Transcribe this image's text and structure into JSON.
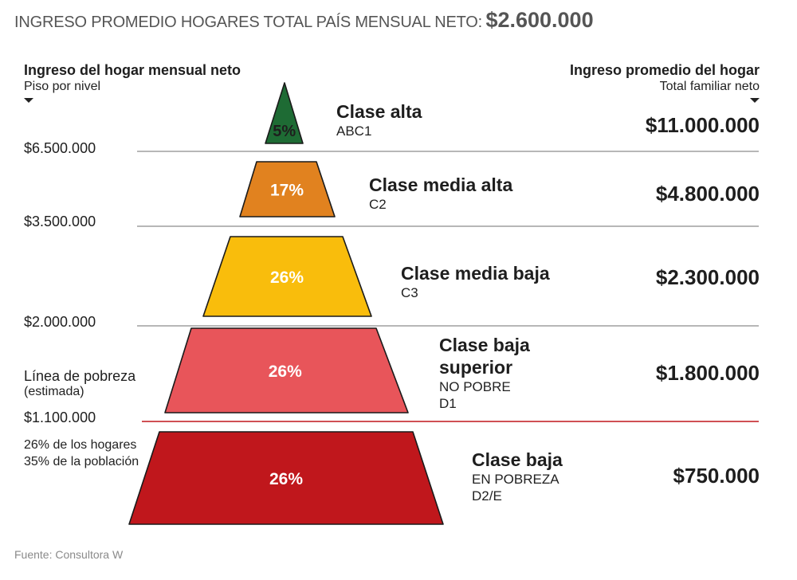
{
  "header": {
    "label": "INGRESO PROMEDIO HOGARES TOTAL PAÍS MENSUAL NETO:",
    "value": "$2.600.000"
  },
  "left_column": {
    "title": "Ingreso del hogar mensual neto",
    "subtitle": "Piso por nivel"
  },
  "right_column": {
    "title": "Ingreso promedio del hogar",
    "subtitle": "Total familiar neto"
  },
  "thresholds": [
    "$6.500.000",
    "$3.500.000",
    "$2.000.000",
    "$1.100.000"
  ],
  "poverty": {
    "title": "Línea de pobreza",
    "subtitle": "(estimada)",
    "note_households": "26% de los hogares",
    "note_population": "35% de la población"
  },
  "source": "Fuente: Consultora W",
  "colors": {
    "alta": "#1e6b34",
    "media_alta": "#e1821f",
    "media_baja": "#f9bd0c",
    "baja_superior": "#e8555a",
    "baja_pobreza": "#c0171c",
    "poverty_line": "#c0171c",
    "separator": "#8c8c8c"
  },
  "chart_data": {
    "type": "table",
    "title": "INGRESO PROMEDIO HOGARES TOTAL PAÍS MENSUAL NETO: $2.600.000",
    "levels": [
      {
        "name": "Clase alta",
        "name_lines": [
          "Clase alta"
        ],
        "code_lines": [
          "ABC1"
        ],
        "percent": 5,
        "percent_label": "5%",
        "floor": "$6.500.000",
        "avg_income": "$11.000.000"
      },
      {
        "name": "Clase media alta",
        "name_lines": [
          "Clase media alta"
        ],
        "code_lines": [
          "C2"
        ],
        "percent": 17,
        "percent_label": "17%",
        "floor": "$3.500.000",
        "avg_income": "$4.800.000"
      },
      {
        "name": "Clase media baja",
        "name_lines": [
          "Clase media baja"
        ],
        "code_lines": [
          "C3"
        ],
        "percent": 26,
        "percent_label": "26%",
        "floor": "$2.000.000",
        "avg_income": "$2.300.000"
      },
      {
        "name": "Clase baja superior",
        "name_lines": [
          "Clase baja",
          "superior"
        ],
        "code_lines": [
          "NO POBRE",
          "D1"
        ],
        "percent": 26,
        "percent_label": "26%",
        "floor": "$1.100.000",
        "avg_income": "$1.800.000"
      },
      {
        "name": "Clase baja",
        "name_lines": [
          "Clase baja"
        ],
        "code_lines": [
          "EN POBREZA",
          "D2/E"
        ],
        "percent": 26,
        "percent_label": "26%",
        "floor": "",
        "avg_income": "$750.000"
      }
    ]
  }
}
